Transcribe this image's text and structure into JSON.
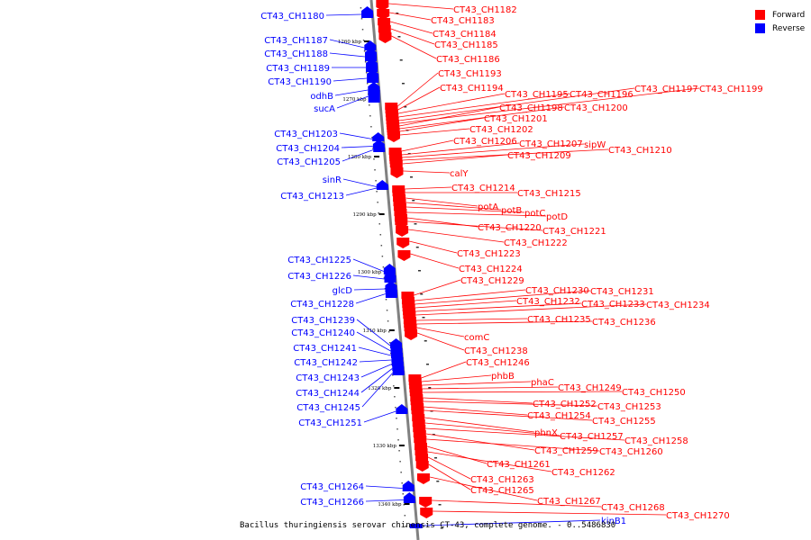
{
  "legend": {
    "forward": {
      "label": "Forward",
      "color": "#ff0000"
    },
    "reverse": {
      "label": "Reverse",
      "color": "#0000ff"
    }
  },
  "caption": "Bacillus thuringiensis serovar chinensis CT-43, complete genome. - 0..5486830",
  "scale_ticks": [
    "1260 kbp",
    "1270 kbp",
    "1280 kbp",
    "1290 kbp",
    "1300 kbp",
    "1310 kbp",
    "1320 kbp",
    "1330 kbp",
    "1340 kbp"
  ],
  "reverse_genes": [
    "CT43_CH1180",
    "CT43_CH1187",
    "CT43_CH1188",
    "CT43_CH1189",
    "CT43_CH1190",
    "odhB",
    "sucA",
    "CT43_CH1203",
    "CT43_CH1204",
    "CT43_CH1205",
    "sinR",
    "CT43_CH1213",
    "CT43_CH1225",
    "CT43_CH1226",
    "glcD",
    "CT43_CH1228",
    "CT43_CH1239",
    "CT43_CH1240",
    "CT43_CH1241",
    "CT43_CH1242",
    "CT43_CH1243",
    "CT43_CH1244",
    "CT43_CH1245",
    "CT43_CH1251",
    "CT43_CH1264",
    "CT43_CH1266",
    "kinB1"
  ],
  "forward_genes": [
    "CT43_CH1182",
    "CT43_CH1183",
    "CT43_CH1184",
    "CT43_CH1185",
    "CT43_CH1186",
    "CT43_CH1193",
    "CT43_CH1194",
    "CT43_CH1195",
    "CT43_CH1196",
    "CT43_CH1197",
    "CT43_CH1199",
    "CT43_CH1198",
    "CT43_CH1200",
    "CT43_CH1201",
    "CT43_CH1202",
    "CT43_CH1206",
    "CT43_CH1207",
    "sipW",
    "CT43_CH1210",
    "CT43_CH1209",
    "calY",
    "CT43_CH1214",
    "CT43_CH1215",
    "potA",
    "potB",
    "potC",
    "potD",
    "CT43_CH1220",
    "CT43_CH1221",
    "CT43_CH1222",
    "CT43_CH1223",
    "CT43_CH1224",
    "CT43_CH1229",
    "CT43_CH1230",
    "CT43_CH1231",
    "CT43_CH1232",
    "CT43_CH1233",
    "CT43_CH1234",
    "CT43_CH1235",
    "CT43_CH1236",
    "comC",
    "CT43_CH1238",
    "CT43_CH1246",
    "phbB",
    "phaC",
    "CT43_CH1249",
    "CT43_CH1250",
    "CT43_CH1252",
    "CT43_CH1253",
    "CT43_CH1254",
    "CT43_CH1255",
    "phnX",
    "CT43_CH1257",
    "CT43_CH1258",
    "CT43_CH1259",
    "CT43_CH1260",
    "CT43_CH1261",
    "CT43_CH1262",
    "CT43_CH1263",
    "CT43_CH1265",
    "CT43_CH1267",
    "CT43_CH1268",
    "CT43_CH1270"
  ]
}
